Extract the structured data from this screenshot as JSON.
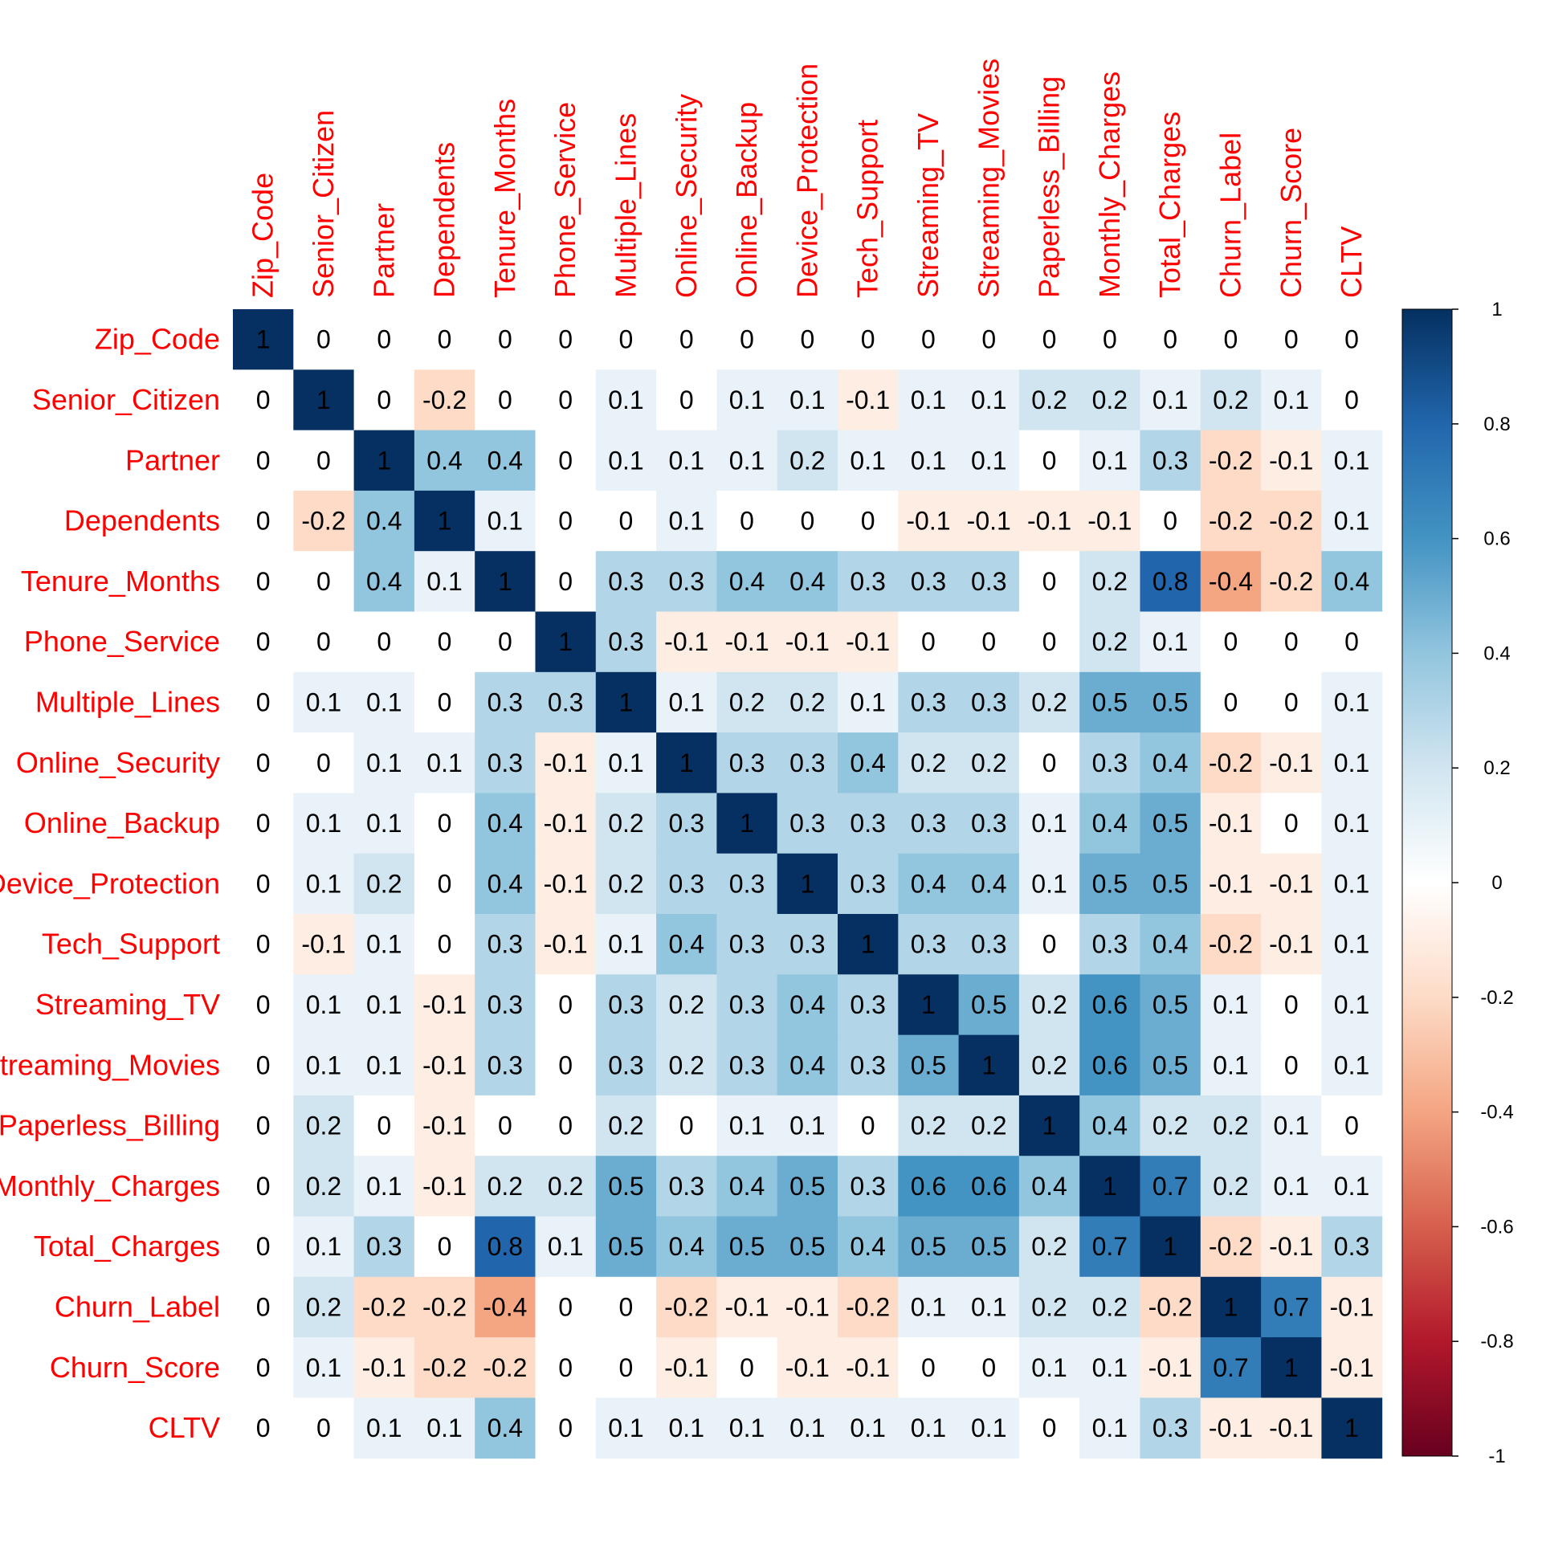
{
  "chart_data": {
    "type": "heatmap",
    "title": "",
    "variables": [
      "Zip_Code",
      "Senior_Citizen",
      "Partner",
      "Dependents",
      "Tenure_Months",
      "Phone_Service",
      "Multiple_Lines",
      "Online_Security",
      "Online_Backup",
      "Device_Protection",
      "Tech_Support",
      "Streaming_TV",
      "Streaming_Movies",
      "Paperless_Billing",
      "Monthly_Charges",
      "Total_Charges",
      "Churn_Label",
      "Churn_Score",
      "CLTV"
    ],
    "matrix": [
      [
        1,
        0,
        0,
        0,
        0,
        0,
        0,
        0,
        0,
        0,
        0,
        0,
        0,
        0,
        0,
        0,
        0,
        0,
        0
      ],
      [
        0,
        1,
        0,
        -0.2,
        0,
        0,
        0.1,
        0,
        0.1,
        0.1,
        -0.1,
        0.1,
        0.1,
        0.2,
        0.2,
        0.1,
        0.2,
        0.1,
        0
      ],
      [
        0,
        0,
        1,
        0.4,
        0.4,
        0,
        0.1,
        0.1,
        0.1,
        0.2,
        0.1,
        0.1,
        0.1,
        0,
        0.1,
        0.3,
        -0.2,
        -0.1,
        0.1
      ],
      [
        0,
        -0.2,
        0.4,
        1,
        0.1,
        0,
        0,
        0.1,
        0,
        0,
        0,
        -0.1,
        -0.1,
        -0.1,
        -0.1,
        0,
        -0.2,
        -0.2,
        0.1
      ],
      [
        0,
        0,
        0.4,
        0.1,
        1,
        0,
        0.3,
        0.3,
        0.4,
        0.4,
        0.3,
        0.3,
        0.3,
        0,
        0.2,
        0.8,
        -0.4,
        -0.2,
        0.4
      ],
      [
        0,
        0,
        0,
        0,
        0,
        1,
        0.3,
        -0.1,
        -0.1,
        -0.1,
        -0.1,
        0,
        0,
        0,
        0.2,
        0.1,
        0,
        0,
        0
      ],
      [
        0,
        0.1,
        0.1,
        0,
        0.3,
        0.3,
        1,
        0.1,
        0.2,
        0.2,
        0.1,
        0.3,
        0.3,
        0.2,
        0.5,
        0.5,
        0,
        0,
        0.1
      ],
      [
        0,
        0,
        0.1,
        0.1,
        0.3,
        -0.1,
        0.1,
        1,
        0.3,
        0.3,
        0.4,
        0.2,
        0.2,
        0,
        0.3,
        0.4,
        -0.2,
        -0.1,
        0.1
      ],
      [
        0,
        0.1,
        0.1,
        0,
        0.4,
        -0.1,
        0.2,
        0.3,
        1,
        0.3,
        0.3,
        0.3,
        0.3,
        0.1,
        0.4,
        0.5,
        -0.1,
        0,
        0.1
      ],
      [
        0,
        0.1,
        0.2,
        0,
        0.4,
        -0.1,
        0.2,
        0.3,
        0.3,
        1,
        0.3,
        0.4,
        0.4,
        0.1,
        0.5,
        0.5,
        -0.1,
        -0.1,
        0.1
      ],
      [
        0,
        -0.1,
        0.1,
        0,
        0.3,
        -0.1,
        0.1,
        0.4,
        0.3,
        0.3,
        1,
        0.3,
        0.3,
        0,
        0.3,
        0.4,
        -0.2,
        -0.1,
        0.1
      ],
      [
        0,
        0.1,
        0.1,
        -0.1,
        0.3,
        0,
        0.3,
        0.2,
        0.3,
        0.4,
        0.3,
        1,
        0.5,
        0.2,
        0.6,
        0.5,
        0.1,
        0,
        0.1
      ],
      [
        0,
        0.1,
        0.1,
        -0.1,
        0.3,
        0,
        0.3,
        0.2,
        0.3,
        0.4,
        0.3,
        0.5,
        1,
        0.2,
        0.6,
        0.5,
        0.1,
        0,
        0.1
      ],
      [
        0,
        0.2,
        0,
        -0.1,
        0,
        0,
        0.2,
        0,
        0.1,
        0.1,
        0,
        0.2,
        0.2,
        1,
        0.4,
        0.2,
        0.2,
        0.1,
        0
      ],
      [
        0,
        0.2,
        0.1,
        -0.1,
        0.2,
        0.2,
        0.5,
        0.3,
        0.4,
        0.5,
        0.3,
        0.6,
        0.6,
        0.4,
        1,
        0.7,
        0.2,
        0.1,
        0.1
      ],
      [
        0,
        0.1,
        0.3,
        0,
        0.8,
        0.1,
        0.5,
        0.4,
        0.5,
        0.5,
        0.4,
        0.5,
        0.5,
        0.2,
        0.7,
        1,
        -0.2,
        -0.1,
        0.3
      ],
      [
        0,
        0.2,
        -0.2,
        -0.2,
        -0.4,
        0,
        0,
        -0.2,
        -0.1,
        -0.1,
        -0.2,
        0.1,
        0.1,
        0.2,
        0.2,
        -0.2,
        1,
        0.7,
        -0.1
      ],
      [
        0,
        0.1,
        -0.1,
        -0.2,
        -0.2,
        0,
        0,
        -0.1,
        0,
        -0.1,
        -0.1,
        0,
        0,
        0.1,
        0.1,
        -0.1,
        0.7,
        1,
        -0.1
      ],
      [
        0,
        0,
        0.1,
        0.1,
        0.4,
        0,
        0.1,
        0.1,
        0.1,
        0.1,
        0.1,
        0.1,
        0.1,
        0,
        0.1,
        0.3,
        -0.1,
        -0.1,
        1
      ]
    ],
    "value_range": [
      -1,
      1
    ],
    "legend": {
      "position": "right",
      "ticks": [
        "1",
        "0.8",
        "0.6",
        "0.4",
        "0.2",
        "0",
        "-0.2",
        "-0.4",
        "-0.6",
        "-0.8",
        "-1"
      ]
    },
    "colors": {
      "negative_end": "#67001F",
      "neutral": "#FFFFFF",
      "positive_end": "#053061",
      "label_color": "#FF0000",
      "cell_text_color": "#000000"
    }
  }
}
